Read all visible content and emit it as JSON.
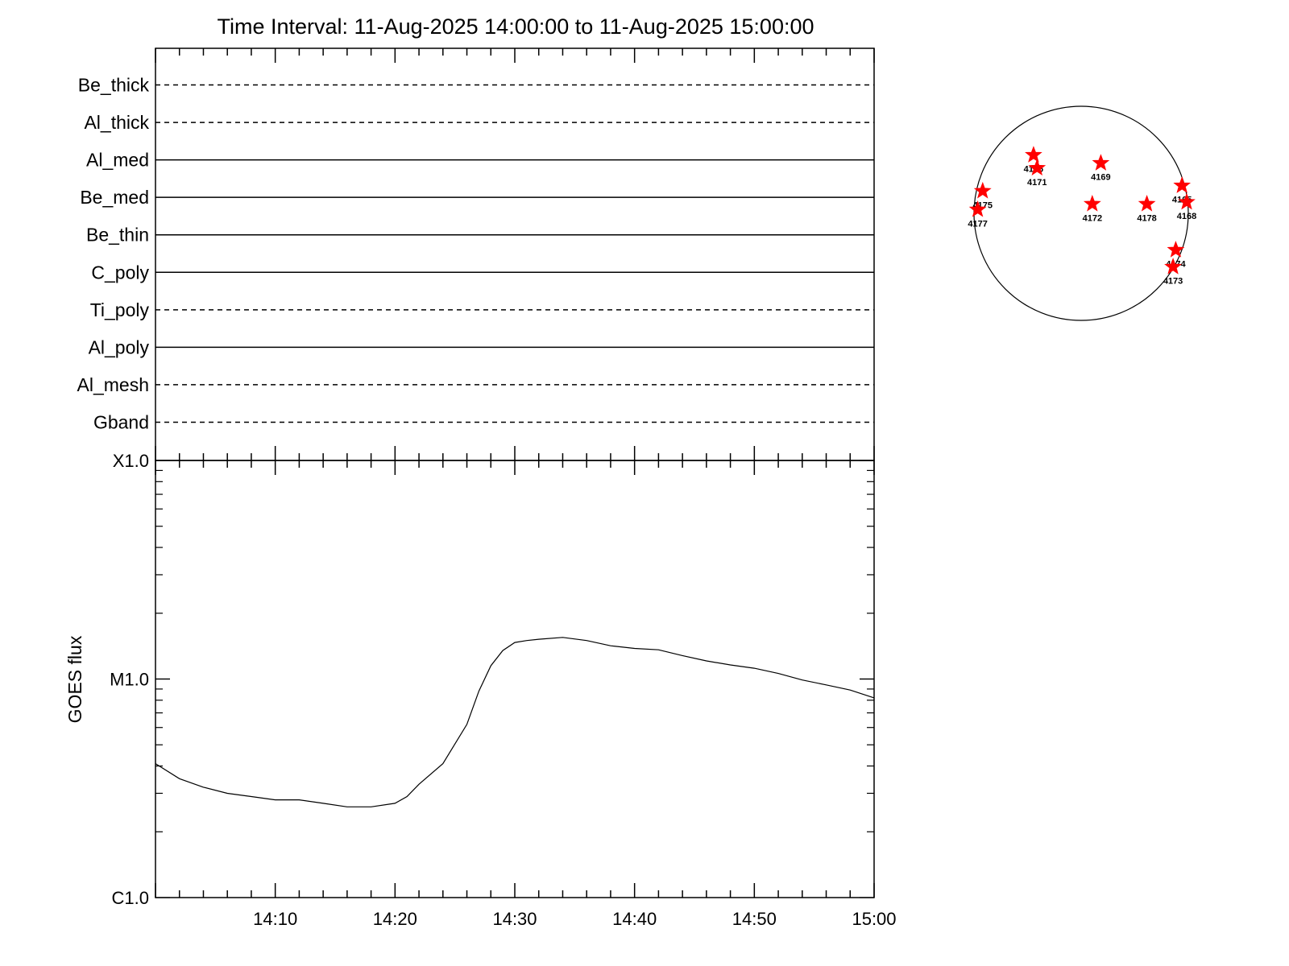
{
  "title": "Time Interval: 11-Aug-2025 14:00:00 to 11-Aug-2025 15:00:00",
  "filter_panel": {
    "rows": [
      {
        "name": "Be_thick",
        "style": "dashed"
      },
      {
        "name": "Al_thick",
        "style": "dashed"
      },
      {
        "name": "Al_med",
        "style": "solid"
      },
      {
        "name": "Be_med",
        "style": "solid"
      },
      {
        "name": "Be_thin",
        "style": "solid"
      },
      {
        "name": "C_poly",
        "style": "solid"
      },
      {
        "name": "Ti_poly",
        "style": "dashed"
      },
      {
        "name": "Al_poly",
        "style": "solid"
      },
      {
        "name": "Al_mesh",
        "style": "dashed"
      },
      {
        "name": "Gband",
        "style": "dashed"
      }
    ]
  },
  "chart_data": {
    "type": "line",
    "ylabel": "GOES flux",
    "xlabel": "",
    "xlim": [
      "14:00",
      "15:00"
    ],
    "x_ticks": [
      "14:10",
      "14:20",
      "14:30",
      "14:40",
      "14:50",
      "15:00"
    ],
    "y_scale": "log",
    "y_ticks": [
      {
        "label": "C1.0",
        "value": 1e-06
      },
      {
        "label": "M1.0",
        "value": 1e-05
      },
      {
        "label": "X1.0",
        "value": 0.0001
      }
    ],
    "ylim": [
      1e-06,
      0.0001
    ],
    "line_color": "#000000",
    "series": [
      {
        "x": [
          "14:00",
          "14:02",
          "14:04",
          "14:06",
          "14:08",
          "14:10",
          "14:12",
          "14:14",
          "14:16",
          "14:18",
          "14:20",
          "14:21",
          "14:22",
          "14:24",
          "14:26",
          "14:27",
          "14:28",
          "14:29",
          "14:30",
          "14:31",
          "14:32",
          "14:34",
          "14:36",
          "14:38",
          "14:40",
          "14:42",
          "14:44",
          "14:46",
          "14:48",
          "14:50",
          "14:52",
          "14:54",
          "14:56",
          "14:58",
          "15:00"
        ],
        "values": [
          4.1e-06,
          3.5e-06,
          3.2e-06,
          3e-06,
          2.9e-06,
          2.8e-06,
          2.8e-06,
          2.7e-06,
          2.6e-06,
          2.6e-06,
          2.7e-06,
          2.9e-06,
          3.3e-06,
          4.1e-06,
          6.2e-06,
          8.8e-06,
          1.15e-05,
          1.35e-05,
          1.47e-05,
          1.5e-05,
          1.52e-05,
          1.55e-05,
          1.5e-05,
          1.42e-05,
          1.38e-05,
          1.36e-05,
          1.28e-05,
          1.21e-05,
          1.16e-05,
          1.12e-05,
          1.06e-05,
          9.9e-06,
          9.4e-06,
          8.9e-06,
          8.2e-06
        ]
      }
    ]
  },
  "sun_map": {
    "marker_color": "#ff0000",
    "regions": [
      {
        "id": "4176",
        "lon": -32,
        "lat": 33
      },
      {
        "id": "4171",
        "lon": -27,
        "lat": 25
      },
      {
        "id": "4169",
        "lon": 12,
        "lat": 28
      },
      {
        "id": "4175",
        "lon": -70,
        "lat": 12
      },
      {
        "id": "4177",
        "lon": -75,
        "lat": 2
      },
      {
        "id": "4172",
        "lon": 6,
        "lat": 5
      },
      {
        "id": "4178",
        "lon": 38,
        "lat": 5
      },
      {
        "id": "4165",
        "lon": 77,
        "lat": 15
      },
      {
        "id": "4168",
        "lon": 82,
        "lat": 6
      },
      {
        "id": "4174",
        "lon": 70,
        "lat": -20
      },
      {
        "id": "4173",
        "lon": 82,
        "lat": -30
      }
    ]
  }
}
